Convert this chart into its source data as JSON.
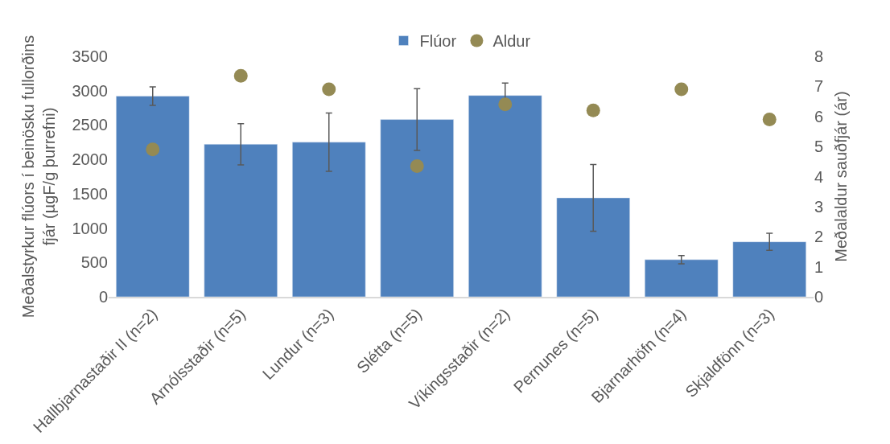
{
  "chart_data": {
    "type": "bar",
    "categories": [
      "Hallbjarnastaðir II (n=2)",
      "Arnólsstaðir (n=5)",
      "Lundur (n=3)",
      "Slétta (n=5)",
      "Víkingsstaðir (n=2)",
      "Pernunes (n=5)",
      "Bjarnarhöfn (n=4)",
      "Skjaldfönn (n=3)"
    ],
    "series": [
      {
        "name": "Flúor",
        "color": "#4f81bd",
        "values": [
          2920,
          2220,
          2250,
          2580,
          2930,
          1440,
          540,
          800
        ],
        "errors": [
          135,
          300,
          425,
          450,
          180,
          485,
          60,
          125
        ]
      },
      {
        "name": "Aldur",
        "type": "scatter",
        "axis": "y2",
        "color": "#948a54",
        "marker": "circle",
        "values": [
          4.9,
          7.35,
          6.9,
          4.35,
          6.4,
          6.2,
          6.9,
          5.9
        ]
      }
    ],
    "ylabel": "Meðalstyrkur flúors í beinösku fullorðins fjár (µgF/g þurrefni)",
    "y2label": "Meðalaldur sauðfjár (ár)",
    "ylim": [
      0,
      3500
    ],
    "yticks": [
      0,
      500,
      1000,
      1500,
      2000,
      2500,
      3000,
      3500
    ],
    "y2lim": [
      0,
      8
    ],
    "y2ticks": [
      0,
      1,
      2,
      3,
      4,
      5,
      6,
      7,
      8
    ],
    "legend": "top",
    "grid": false
  }
}
